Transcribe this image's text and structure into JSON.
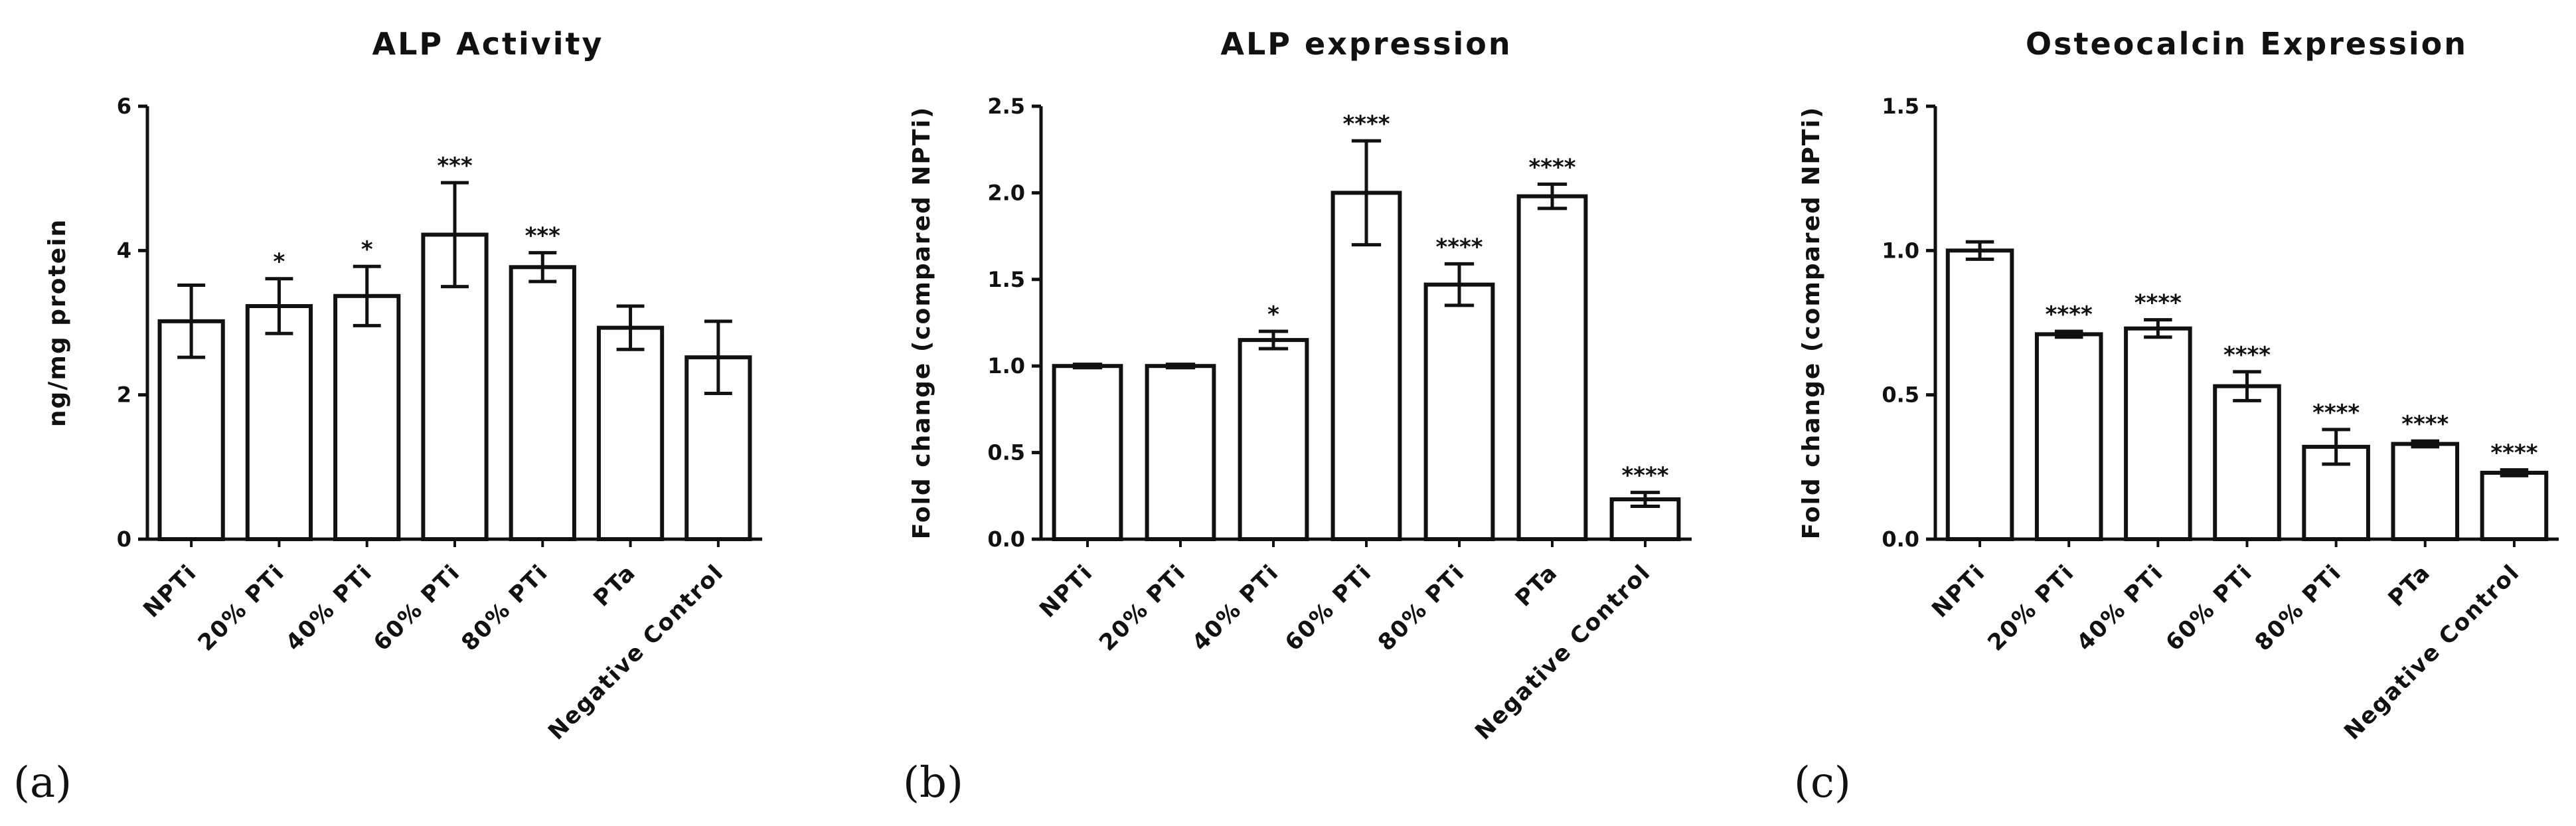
{
  "chart_data": [
    {
      "type": "bar",
      "panel_label": "(a)",
      "title": "ALP Activity",
      "ylabel": "ng/mg protein",
      "xlabel": "",
      "ylim": [
        0,
        6
      ],
      "yticks": [
        "0",
        "2",
        "4",
        "6"
      ],
      "categories": [
        "NPTi",
        "20% PTi",
        "40% PTi",
        "60% PTi",
        "80% PTi",
        "PTa",
        "Negative Control"
      ],
      "values": [
        3.02,
        3.23,
        3.37,
        4.22,
        3.77,
        2.93,
        2.52
      ],
      "errors": [
        0.5,
        0.38,
        0.41,
        0.72,
        0.2,
        0.3,
        0.5
      ],
      "significance": [
        "",
        "*",
        "*",
        "***",
        "***",
        "",
        ""
      ]
    },
    {
      "type": "bar",
      "panel_label": "(b)",
      "title": "ALP expression",
      "ylabel": "Fold change (compared NPTi)",
      "xlabel": "",
      "ylim": [
        0,
        2.5
      ],
      "yticks": [
        "0.0",
        "0.5",
        "1.0",
        "1.5",
        "2.0",
        "2.5"
      ],
      "categories": [
        "NPTi",
        "20% PTi",
        "40% PTi",
        "60% PTi",
        "80% PTi",
        "PTa",
        "Negative Control"
      ],
      "values": [
        1.0,
        1.0,
        1.15,
        2.0,
        1.47,
        1.98,
        0.23
      ],
      "errors": [
        0.01,
        0.01,
        0.05,
        0.3,
        0.12,
        0.07,
        0.04
      ],
      "significance": [
        "",
        "",
        "*",
        "****",
        "****",
        "****",
        "****"
      ]
    },
    {
      "type": "bar",
      "panel_label": "(c)",
      "title": "Osteocalcin Expression",
      "ylabel": "Fold change (compared NPTi)",
      "xlabel": "",
      "ylim": [
        0,
        1.5
      ],
      "yticks": [
        "0.0",
        "0.5",
        "1.0",
        "1.5"
      ],
      "categories": [
        "NPTi",
        "20% PTi",
        "40% PTi",
        "60% PTi",
        "80% PTi",
        "PTa",
        "Negative Control"
      ],
      "values": [
        1.0,
        0.71,
        0.73,
        0.53,
        0.32,
        0.33,
        0.23
      ],
      "errors": [
        0.03,
        0.01,
        0.03,
        0.05,
        0.06,
        0.01,
        0.01
      ],
      "significance": [
        "",
        "****",
        "****",
        "****",
        "****",
        "****",
        "****"
      ]
    }
  ]
}
